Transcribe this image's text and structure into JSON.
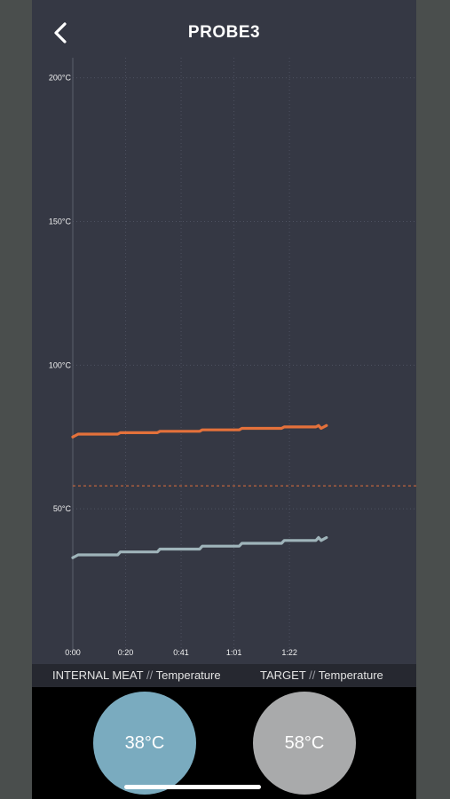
{
  "header": {
    "title": "PROBE3",
    "back_icon": "chevron-left-icon"
  },
  "chart_data": {
    "type": "line",
    "xlabel": "",
    "ylabel": "",
    "x_ticks": [
      "0:00",
      "0:20",
      "0:41",
      "1:01",
      "1:22"
    ],
    "x_tick_minutes": [
      0,
      20,
      41,
      61,
      82
    ],
    "y_ticks": [
      "50°C",
      "100°C",
      "150°C",
      "200°C"
    ],
    "y_tick_values": [
      50,
      100,
      150,
      200
    ],
    "xlim": [
      0,
      130
    ],
    "ylim": [
      0,
      207
    ],
    "grid": true,
    "series": [
      {
        "name": "INTERNAL MEAT",
        "color": "#9fb4ba",
        "x": [
          0,
          1,
          2,
          17,
          18,
          32,
          33,
          48,
          49,
          63,
          64,
          79,
          80,
          92,
          93,
          94,
          96
        ],
        "y": [
          33,
          33.5,
          34,
          34,
          35,
          35,
          36,
          36,
          37,
          37,
          38,
          38,
          39,
          39,
          40,
          39,
          40
        ]
      },
      {
        "name": "Temperature",
        "color": "#e4713b",
        "x": [
          0,
          1,
          2,
          17,
          18,
          32,
          33,
          48,
          49,
          63,
          64,
          79,
          80,
          92,
          93,
          94,
          96
        ],
        "y": [
          75,
          75.5,
          76,
          76,
          76.5,
          76.5,
          77,
          77,
          77.5,
          77.5,
          78,
          78,
          78.5,
          78.5,
          79,
          78,
          79
        ]
      }
    ],
    "target_line": {
      "y": 58,
      "color": "#e4713b"
    }
  },
  "legend": {
    "internal": "INTERNAL MEAT",
    "target": "TARGET",
    "separator": "//",
    "temperature": "Temperature"
  },
  "readouts": {
    "internal": {
      "value": "38°C",
      "color": "#7aabbf"
    },
    "target": {
      "value": "58°C",
      "color": "#a9aaab"
    }
  }
}
